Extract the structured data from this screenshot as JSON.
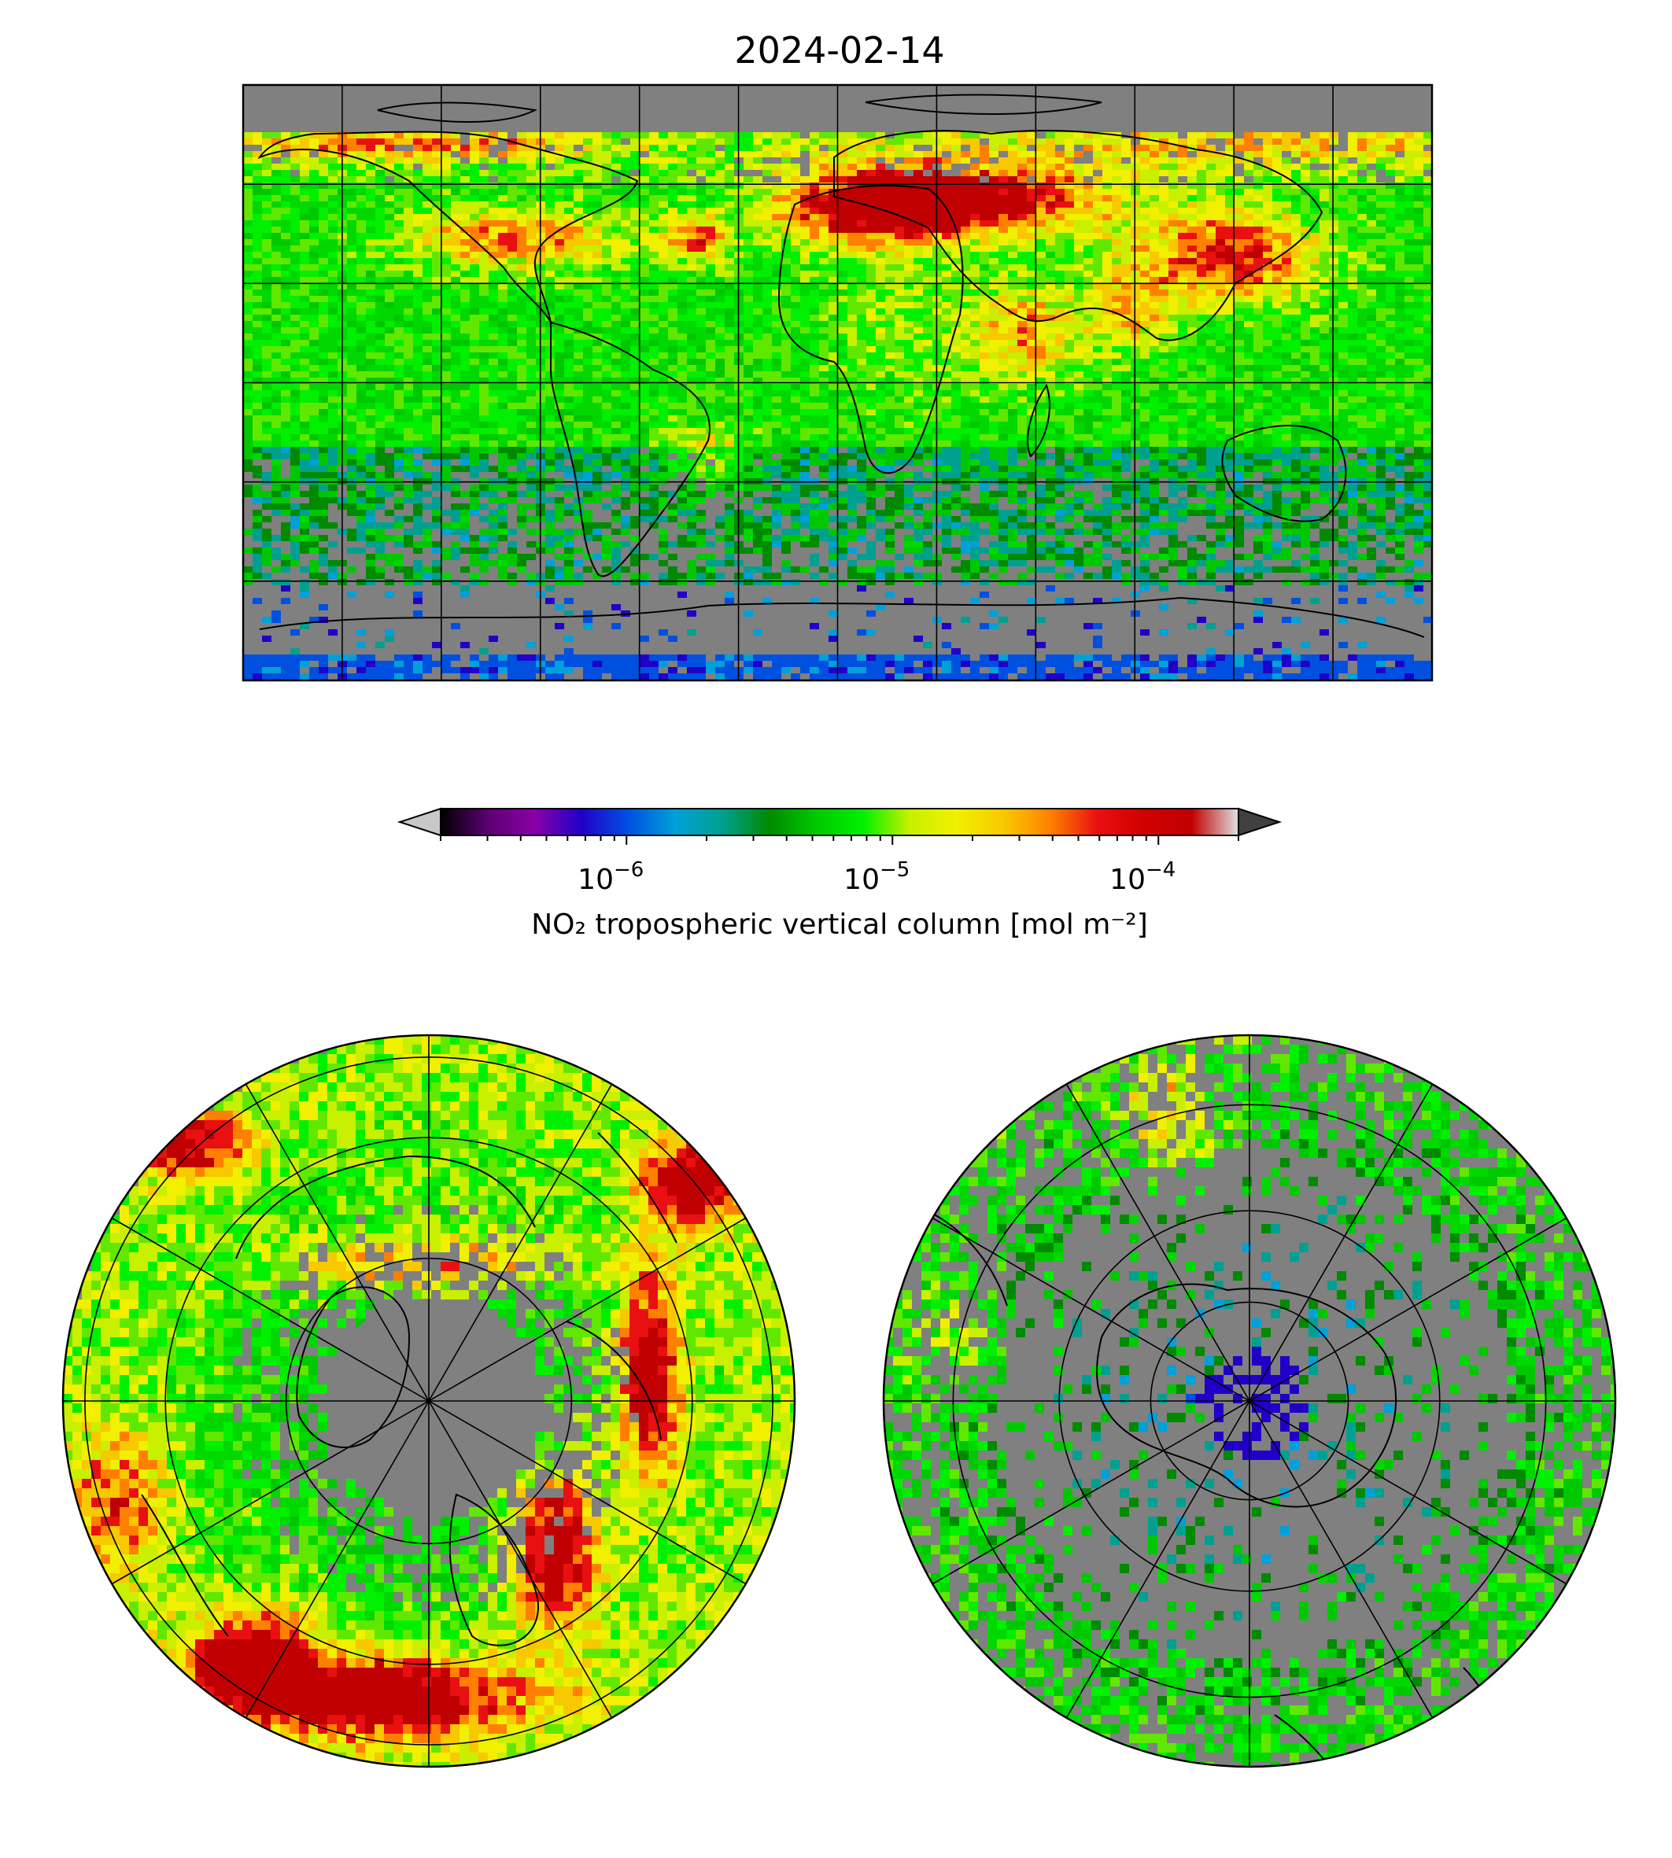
{
  "title": "2024-02-14",
  "colorbar": {
    "label": "NO₂ tropospheric vertical column [mol m⁻²]",
    "scale": "log",
    "range": [
      2e-07,
      0.0002
    ],
    "ticks": [
      {
        "value": 1e-06,
        "base": "10",
        "exp": "−6"
      },
      {
        "value": 1e-05,
        "base": "10",
        "exp": "−5"
      },
      {
        "value": 0.0001,
        "base": "10",
        "exp": "−4"
      }
    ],
    "extend": "both",
    "under_color": "#c8c8c8",
    "over_color": "#404040",
    "stops": [
      "#000000",
      "#5a0070",
      "#8a00a8",
      "#2000c8",
      "#0050e0",
      "#00a0d8",
      "#00a090",
      "#008a00",
      "#00c800",
      "#00f000",
      "#c8f000",
      "#f0f000",
      "#f8c800",
      "#ff8000",
      "#e81010",
      "#d00000",
      "#c00000",
      "#e0e0e0"
    ]
  },
  "maps": {
    "global": {
      "projection": "plate-carree",
      "gridlines_deg": 30,
      "missing_color": "#808080"
    },
    "north_polar": {
      "projection": "north-polar-stereographic",
      "missing_color": "#808080"
    },
    "south_polar": {
      "projection": "south-polar-stereographic",
      "missing_color": "#808080"
    }
  }
}
